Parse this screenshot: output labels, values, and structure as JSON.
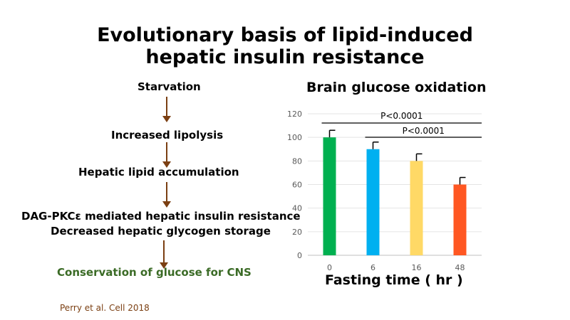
{
  "slide": {
    "title_line1": "Evolutionary basis of lipid-induced",
    "title_line2": "hepatic insulin resistance",
    "flow": [
      "Starvation",
      "Increased lipolysis",
      "Hepatic lipid accumulation",
      "DAG-PKCε mediated hepatic insulin resistance",
      "Decreased hepatic glycogen storage"
    ],
    "flow_final": "Conservation of glucose for CNS",
    "citation": "Perry et al. Cell 2018",
    "colors": {
      "arrow": "#7b3f12",
      "final_text": "#3b6b26",
      "citation": "#7b3f12"
    }
  },
  "chart_data": {
    "type": "bar",
    "title": "Brain glucose oxidation",
    "xlabel": "Fasting time ( hr )",
    "ylabel": "",
    "categories": [
      "0",
      "6",
      "16",
      "48"
    ],
    "values": [
      100,
      90,
      80,
      60
    ],
    "errors": [
      6,
      6,
      6,
      6
    ],
    "bar_colors": [
      "#00b050",
      "#00b0f0",
      "#ffd966",
      "#ff5722"
    ],
    "ylim": [
      0,
      120
    ],
    "yticks": [
      0,
      20,
      40,
      60,
      80,
      100,
      120
    ],
    "grid": true,
    "annotations": [
      {
        "text": "P<0.0001",
        "from": "0",
        "to": "48"
      },
      {
        "text": "P<0.0001",
        "from": "6",
        "to": "48"
      }
    ]
  }
}
